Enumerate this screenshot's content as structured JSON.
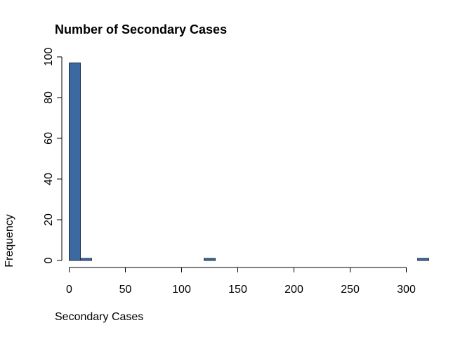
{
  "chart_data": {
    "type": "bar",
    "title": "Number of Secondary Cases",
    "xlabel": "Secondary Cases",
    "ylabel": "Frequency",
    "bin_width": 10,
    "bins": [
      {
        "x0": 0,
        "x1": 10,
        "count": 97
      },
      {
        "x0": 10,
        "x1": 20,
        "count": 1
      },
      {
        "x0": 20,
        "x1": 30,
        "count": 0
      },
      {
        "x0": 30,
        "x1": 40,
        "count": 0
      },
      {
        "x0": 40,
        "x1": 50,
        "count": 0
      },
      {
        "x0": 50,
        "x1": 60,
        "count": 0
      },
      {
        "x0": 60,
        "x1": 70,
        "count": 0
      },
      {
        "x0": 70,
        "x1": 80,
        "count": 0
      },
      {
        "x0": 80,
        "x1": 90,
        "count": 0
      },
      {
        "x0": 90,
        "x1": 100,
        "count": 0
      },
      {
        "x0": 100,
        "x1": 110,
        "count": 0
      },
      {
        "x0": 110,
        "x1": 120,
        "count": 0
      },
      {
        "x0": 120,
        "x1": 130,
        "count": 1
      },
      {
        "x0": 130,
        "x1": 140,
        "count": 0
      },
      {
        "x0": 140,
        "x1": 150,
        "count": 0
      },
      {
        "x0": 150,
        "x1": 160,
        "count": 0
      },
      {
        "x0": 160,
        "x1": 170,
        "count": 0
      },
      {
        "x0": 170,
        "x1": 180,
        "count": 0
      },
      {
        "x0": 180,
        "x1": 190,
        "count": 0
      },
      {
        "x0": 190,
        "x1": 200,
        "count": 0
      },
      {
        "x0": 200,
        "x1": 210,
        "count": 0
      },
      {
        "x0": 210,
        "x1": 220,
        "count": 0
      },
      {
        "x0": 220,
        "x1": 230,
        "count": 0
      },
      {
        "x0": 230,
        "x1": 240,
        "count": 0
      },
      {
        "x0": 240,
        "x1": 250,
        "count": 0
      },
      {
        "x0": 250,
        "x1": 260,
        "count": 0
      },
      {
        "x0": 260,
        "x1": 270,
        "count": 0
      },
      {
        "x0": 270,
        "x1": 280,
        "count": 0
      },
      {
        "x0": 280,
        "x1": 290,
        "count": 0
      },
      {
        "x0": 290,
        "x1": 300,
        "count": 0
      },
      {
        "x0": 300,
        "x1": 310,
        "count": 0
      },
      {
        "x0": 310,
        "x1": 320,
        "count": 1
      }
    ],
    "xlim": [
      0,
      320
    ],
    "ylim": [
      0,
      100
    ],
    "xticks": [
      0,
      50,
      100,
      150,
      200,
      250,
      300
    ],
    "yticks": [
      0,
      20,
      40,
      60,
      80,
      100
    ],
    "grid": false,
    "legend": "none",
    "colors": {
      "bar_fill": "#3b6aa0",
      "bar_stroke": "#1f2f46",
      "axis": "#000000",
      "background": "#ffffff"
    }
  }
}
